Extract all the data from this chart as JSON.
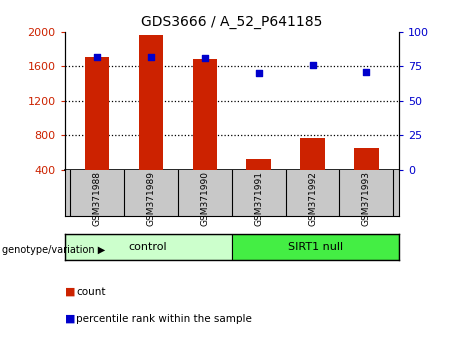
{
  "title": "GDS3666 / A_52_P641185",
  "samples": [
    "GSM371988",
    "GSM371989",
    "GSM371990",
    "GSM371991",
    "GSM371992",
    "GSM371993"
  ],
  "counts": [
    1710,
    1960,
    1690,
    530,
    775,
    650
  ],
  "percentile_ranks": [
    82,
    82,
    81,
    70,
    76,
    71
  ],
  "ylim_left": [
    400,
    2000
  ],
  "ylim_right": [
    0,
    100
  ],
  "yticks_left": [
    400,
    800,
    1200,
    1600,
    2000
  ],
  "yticks_right": [
    0,
    25,
    50,
    75,
    100
  ],
  "bar_color": "#cc2200",
  "dot_color": "#0000cc",
  "bar_width": 0.45,
  "groups": [
    {
      "label": "control",
      "indices": [
        0,
        1,
        2
      ],
      "color": "#ccffcc"
    },
    {
      "label": "SIRT1 null",
      "indices": [
        3,
        4,
        5
      ],
      "color": "#44ee44"
    }
  ],
  "genotype_label": "genotype/variation",
  "legend_count_label": "count",
  "legend_percentile_label": "percentile rank within the sample",
  "left_tick_color": "#cc2200",
  "right_tick_color": "#0000cc",
  "bg_color": "#c8c8c8",
  "plot_bg": "#ffffff"
}
